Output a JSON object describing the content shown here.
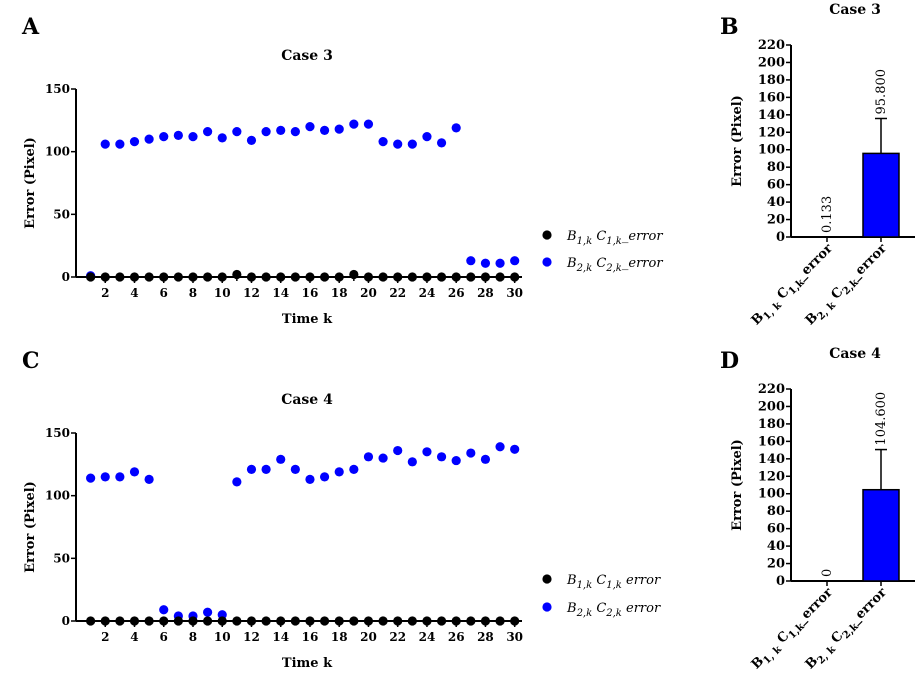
{
  "colors": {
    "series1": "#000000",
    "series2": "#0000ff",
    "axis": "#000000"
  },
  "panel_labels": [
    "A",
    "B",
    "C",
    "D"
  ],
  "chart_data": [
    {
      "id": "A",
      "type": "scatter",
      "title": "Case 3",
      "xlabel": "Time k",
      "ylabel": "Error (Pixel)",
      "xlim": [
        0,
        30.5
      ],
      "ylim": [
        0,
        150
      ],
      "xticks": [
        2,
        4,
        6,
        8,
        10,
        12,
        14,
        16,
        18,
        20,
        22,
        24,
        26,
        28,
        30
      ],
      "yticks": [
        0,
        50,
        100,
        150
      ],
      "x": [
        1,
        2,
        3,
        4,
        5,
        6,
        7,
        8,
        9,
        10,
        11,
        12,
        13,
        14,
        15,
        16,
        17,
        18,
        19,
        20,
        21,
        22,
        23,
        24,
        25,
        26,
        27,
        28,
        29,
        30
      ],
      "series": [
        {
          "name": "B1,k C1,k error",
          "legend_main1": "B",
          "legend_sub1": "1,k",
          "legend_main2": "C",
          "legend_sub2": "1,k",
          "legend_tail": "_error",
          "values": [
            0,
            0,
            0,
            0,
            0,
            0,
            0,
            0,
            0,
            0,
            2,
            0,
            0,
            0,
            0,
            0,
            0,
            0,
            2,
            0,
            0,
            0,
            0,
            0,
            0,
            0,
            0,
            0,
            0,
            0
          ]
        },
        {
          "name": "B2,k C2,k error",
          "legend_main1": "B",
          "legend_sub1": "2,k",
          "legend_main2": "C",
          "legend_sub2": "2,k",
          "legend_tail": "_error",
          "values": [
            1,
            106,
            106,
            108,
            110,
            112,
            113,
            112,
            116,
            111,
            116,
            109,
            116,
            117,
            116,
            120,
            117,
            118,
            122,
            122,
            108,
            106,
            106,
            112,
            107,
            119,
            13,
            11,
            11,
            13
          ]
        }
      ]
    },
    {
      "id": "B",
      "type": "bar",
      "title": "Case 3",
      "ylabel": "Error (Pixel)",
      "ylim": [
        0,
        220
      ],
      "yticks": [
        0,
        20,
        40,
        60,
        80,
        100,
        120,
        140,
        160,
        180,
        200,
        220
      ],
      "categories": [
        {
          "main1": "B",
          "sub1": "1, k",
          "main2": "C",
          "sub2": "1,k",
          "tail": "_error"
        },
        {
          "main1": "B",
          "sub1": "2, k",
          "main2": "C",
          "sub2": "2,k",
          "tail": "_error"
        }
      ],
      "values": [
        0.133,
        95.8
      ],
      "errors": [
        0,
        40
      ],
      "value_labels": [
        "0.133",
        "95.800"
      ]
    },
    {
      "id": "C",
      "type": "scatter",
      "title": "Case 4",
      "xlabel": "Time k",
      "ylabel": "Error (Pixel)",
      "xlim": [
        0,
        30.5
      ],
      "ylim": [
        0,
        150
      ],
      "xticks": [
        2,
        4,
        6,
        8,
        10,
        12,
        14,
        16,
        18,
        20,
        22,
        24,
        26,
        28,
        30
      ],
      "yticks": [
        0,
        50,
        100,
        150
      ],
      "x": [
        1,
        2,
        3,
        4,
        5,
        6,
        7,
        8,
        9,
        10,
        11,
        12,
        13,
        14,
        15,
        16,
        17,
        18,
        19,
        20,
        21,
        22,
        23,
        24,
        25,
        26,
        27,
        28,
        29,
        30
      ],
      "series": [
        {
          "name": "B1,k C1,k error",
          "legend_main1": "B",
          "legend_sub1": "1,k",
          "legend_main2": "C",
          "legend_sub2": "1,k",
          "legend_tail": " error",
          "values": [
            0,
            0,
            0,
            0,
            0,
            0,
            0,
            0,
            0,
            0,
            0,
            0,
            0,
            0,
            0,
            0,
            0,
            0,
            0,
            0,
            0,
            0,
            0,
            0,
            0,
            0,
            0,
            0,
            0,
            0
          ]
        },
        {
          "name": "B2,k C2,k error",
          "legend_main1": "B",
          "legend_sub1": "2,k",
          "legend_main2": "C",
          "legend_sub2": "2,k",
          "legend_tail": " error",
          "values": [
            114,
            115,
            115,
            119,
            113,
            9,
            4,
            4,
            7,
            5,
            111,
            121,
            121,
            129,
            121,
            113,
            115,
            119,
            121,
            131,
            130,
            136,
            127,
            135,
            131,
            128,
            134,
            129,
            139,
            137
          ]
        }
      ]
    },
    {
      "id": "D",
      "type": "bar",
      "title": "Case 4",
      "ylabel": "Error (Pixel)",
      "ylim": [
        0,
        220
      ],
      "yticks": [
        0,
        20,
        40,
        60,
        80,
        100,
        120,
        140,
        160,
        180,
        200,
        220
      ],
      "categories": [
        {
          "main1": "B",
          "sub1": "1, k",
          "main2": "C",
          "sub2": "1,k",
          "tail": "_error"
        },
        {
          "main1": "B",
          "sub1": "2, k",
          "main2": "C",
          "sub2": "2,k",
          "tail": "_error"
        }
      ],
      "values": [
        0,
        104.6
      ],
      "errors": [
        0,
        46
      ],
      "value_labels": [
        "0",
        "104.600"
      ]
    }
  ]
}
